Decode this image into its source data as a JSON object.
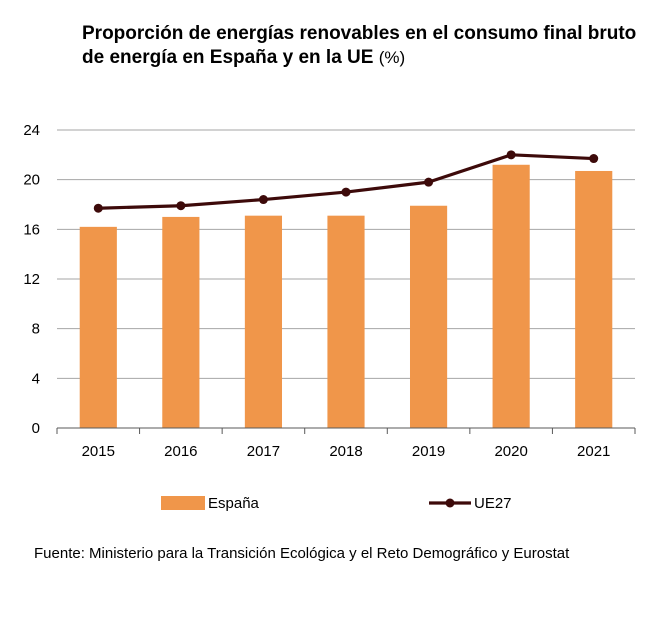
{
  "title": {
    "main": "Proporción de energías renovables en el consumo final bruto de energía en España y en la UE",
    "unit": "(%)"
  },
  "source": "Fuente: Ministerio para la Transición Ecológica y el Reto Demográfico y Eurostat",
  "chart_data": {
    "type": "bar",
    "title": "Proporción de energías renovables en el consumo final bruto de energía en España y en la UE (%)",
    "categories": [
      "2015",
      "2016",
      "2017",
      "2018",
      "2019",
      "2020",
      "2021"
    ],
    "ylim": [
      0,
      24
    ],
    "yticks": [
      0,
      4,
      8,
      12,
      16,
      20,
      24
    ],
    "grid": true,
    "legend_position": "bottom",
    "series": [
      {
        "name": "España",
        "type": "bar",
        "color": "#F0964A",
        "values": [
          16.2,
          17.0,
          17.1,
          17.1,
          17.9,
          21.2,
          20.7
        ]
      },
      {
        "name": "UE27",
        "type": "line",
        "color": "#3D0A0A",
        "values": [
          17.7,
          17.9,
          18.4,
          19.0,
          19.8,
          22.0,
          21.7
        ]
      }
    ]
  }
}
